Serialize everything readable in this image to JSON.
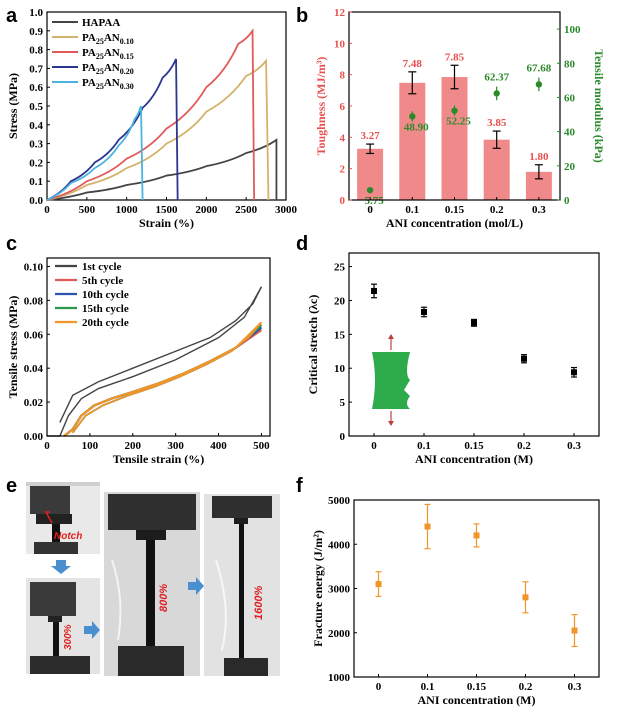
{
  "panels": {
    "a": "a",
    "b": "b",
    "c": "c",
    "d": "d",
    "e": "e",
    "f": "f"
  },
  "chart_data": [
    {
      "panel": "a",
      "type": "line",
      "xlabel": "Strain (%)",
      "ylabel": "Stress (MPa)",
      "xlim": [
        0,
        3000
      ],
      "ylim": [
        0,
        1.0
      ],
      "xticks": [
        0,
        500,
        1000,
        1500,
        2000,
        2500,
        3000
      ],
      "yticks": [
        0.0,
        0.1,
        0.2,
        0.3,
        0.4,
        0.5,
        0.6,
        0.7,
        0.8,
        0.9,
        1.0
      ],
      "ytick_labels": [
        "0.0",
        "0.1",
        "0.2",
        "0.3",
        "0.4",
        "0.5",
        "0.6",
        "0.7",
        "0.8",
        "0.9",
        "1.0"
      ],
      "legend_position": "top-left",
      "series": [
        {
          "name": "HAPAA",
          "color": "#444444",
          "break_at": 2880,
          "x": [
            0,
            500,
            1000,
            1500,
            2000,
            2500,
            2880
          ],
          "y": [
            0,
            0.04,
            0.08,
            0.13,
            0.18,
            0.25,
            0.32
          ]
        },
        {
          "name": "PA25AN0.10",
          "name_main": "PA",
          "sub1": "25",
          "name_mid": "AN",
          "sub2": "0.10",
          "color": "#d4b26a",
          "break_at": 2780,
          "x": [
            0,
            500,
            1000,
            1500,
            2000,
            2500,
            2750
          ],
          "y": [
            0,
            0.08,
            0.17,
            0.3,
            0.47,
            0.66,
            0.74
          ]
        },
        {
          "name": "PA25AN0.15",
          "name_main": "PA",
          "sub1": "25",
          "name_mid": "AN",
          "sub2": "0.15",
          "color": "#e05a5a",
          "break_at": 2600,
          "x": [
            0,
            500,
            1000,
            1500,
            2000,
            2400,
            2580
          ],
          "y": [
            0,
            0.1,
            0.22,
            0.38,
            0.6,
            0.83,
            0.9
          ]
        },
        {
          "name": "PA25AN0.20",
          "name_main": "PA",
          "sub1": "25",
          "name_mid": "AN",
          "sub2": "0.20",
          "color": "#2c3590",
          "break_at": 1640,
          "x": [
            0,
            300,
            600,
            900,
            1200,
            1450,
            1620
          ],
          "y": [
            0,
            0.1,
            0.2,
            0.32,
            0.49,
            0.65,
            0.75
          ]
        },
        {
          "name": "PA25AN0.30",
          "name_main": "PA",
          "sub1": "25",
          "name_mid": "AN",
          "sub2": "0.30",
          "color": "#4ab3e0",
          "break_at": 1200,
          "x": [
            0,
            300,
            600,
            900,
            1100,
            1180
          ],
          "y": [
            0,
            0.09,
            0.17,
            0.29,
            0.43,
            0.5
          ]
        }
      ]
    },
    {
      "panel": "b",
      "type": "bar",
      "xlabel": "ANI concentration (mol/L)",
      "ylabel_left": "Toughness (MJ/m³)",
      "ylabel_right": "Tensile modulus (kPa)",
      "categories": [
        "0",
        "0.1",
        "0.15",
        "0.2",
        "0.3"
      ],
      "ylim_left": [
        0,
        12
      ],
      "ylim_right": [
        0,
        110
      ],
      "yticks_left": [
        0,
        2,
        4,
        6,
        8,
        10,
        12
      ],
      "yticks_right": [
        0,
        20,
        40,
        60,
        80,
        100
      ],
      "left_color": "#e8504f",
      "right_color": "#2a8a2a",
      "bar_color": "#f08a8a",
      "toughness": {
        "values": [
          3.27,
          7.48,
          7.85,
          3.85,
          1.8
        ],
        "labels": [
          "3.27",
          "7.48",
          "7.85",
          "3.85",
          "1.80"
        ],
        "err": [
          0.3,
          0.7,
          0.75,
          0.55,
          0.45
        ]
      },
      "modulus": {
        "values": [
          5.75,
          48.9,
          52.25,
          62.37,
          67.68
        ],
        "labels": [
          "5.75",
          "48.90",
          "52.25",
          "62.37",
          "67.68"
        ],
        "err": [
          1.5,
          3,
          3,
          4,
          4
        ]
      }
    },
    {
      "panel": "c",
      "type": "line",
      "xlabel": "Tensile strain (%)",
      "ylabel": "Tensile stress (MPa)",
      "xlim": [
        0,
        520
      ],
      "ylim": [
        0,
        0.105
      ],
      "xticks": [
        0,
        100,
        200,
        300,
        400,
        500
      ],
      "yticks": [
        0,
        0.02,
        0.04,
        0.06,
        0.08,
        0.1
      ],
      "ytick_labels": [
        "0.00",
        "0.02",
        "0.04",
        "0.06",
        "0.08",
        "0.10"
      ],
      "legend_position": "top-left",
      "series": [
        {
          "name": "1st  cycle",
          "color": "#444444"
        },
        {
          "name": "5th cycle",
          "color": "#e05a5a"
        },
        {
          "name": "10th cycle",
          "color": "#2c55b0"
        },
        {
          "name": "15th cycle",
          "color": "#2a9a4a"
        },
        {
          "name": "20th cycle",
          "color": "#f0952a"
        }
      ]
    },
    {
      "panel": "d",
      "type": "scatter",
      "xlabel": "ANI concentration (M)",
      "ylabel": "Critical stretch (λc)",
      "categories": [
        "0",
        "0.1",
        "0.15",
        "0.2",
        "0.3"
      ],
      "ylim": [
        0,
        27
      ],
      "yticks": [
        0,
        5,
        10,
        15,
        20,
        25
      ],
      "values": [
        21.4,
        18.3,
        16.7,
        11.4,
        9.4
      ],
      "err": [
        1.0,
        0.7,
        0.5,
        0.6,
        0.7
      ],
      "color": "#000000"
    },
    {
      "panel": "f",
      "type": "scatter",
      "xlabel": "ANI concentration (M)",
      "ylabel": "Fracture energy (J/m²)",
      "categories": [
        "0",
        "0.1",
        "0.15",
        "0.2",
        "0.3"
      ],
      "ylim": [
        1000,
        5000
      ],
      "yticks": [
        1000,
        2000,
        3000,
        4000,
        5000
      ],
      "values": [
        3100,
        4400,
        4200,
        2800,
        2050
      ],
      "err": [
        280,
        500,
        260,
        350,
        360
      ],
      "color": "#f0952a"
    }
  ],
  "photos": {
    "notch_label": "Notch",
    "strain_labels": [
      "300%",
      "800%",
      "1600%"
    ]
  }
}
